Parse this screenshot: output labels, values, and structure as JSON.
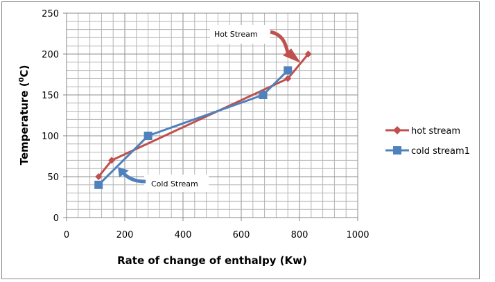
{
  "chart_data": {
    "type": "line",
    "title": "",
    "xlabel": "Rate of change of enthalpy (Kw)",
    "ylabel_main": "Temperature (",
    "ylabel_sup": "0",
    "ylabel_tail": "C)",
    "xlim": [
      0,
      1000
    ],
    "ylim": [
      0,
      250
    ],
    "x_ticks": [
      0,
      200,
      400,
      600,
      800,
      1000
    ],
    "y_ticks": [
      0,
      50,
      100,
      150,
      200,
      250
    ],
    "x_minor_step": 40,
    "y_minor_step": 10,
    "grid": true,
    "legend_position": "right",
    "series": [
      {
        "name": "hot stream",
        "color": "#C0504D",
        "marker": "diamond",
        "points": [
          [
            110,
            50
          ],
          [
            155,
            70
          ],
          [
            760,
            170
          ],
          [
            830,
            200
          ]
        ]
      },
      {
        "name": "cold stream1",
        "color": "#4F81BD",
        "marker": "square",
        "points": [
          [
            110,
            40
          ],
          [
            280,
            100
          ],
          [
            675,
            150
          ],
          [
            760,
            180
          ]
        ]
      }
    ],
    "annotations": [
      {
        "text": "Hot Stream",
        "color": "#C0504D"
      },
      {
        "text": "Cold Stream",
        "color": "#4F81BD"
      }
    ]
  }
}
